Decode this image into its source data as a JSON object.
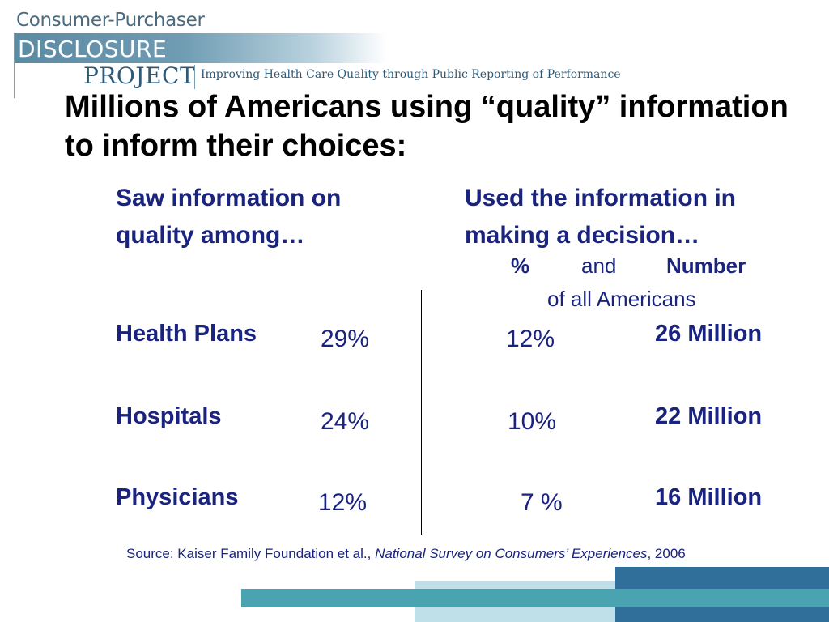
{
  "logo": {
    "line1": "Consumer-Purchaser",
    "line2": "DISCLOSURE",
    "line3": "PROJECT",
    "tagline": "Improving Health Care Quality through Public Reporting of Performance"
  },
  "title": "Millions of Americans using “quality” information to inform their choices:",
  "left_heading": "Saw information on quality among…",
  "right_heading": "Used the information in making a decision…",
  "subheaders": {
    "percent": "%",
    "and": "and",
    "number": "Number",
    "of_all": "of all Americans"
  },
  "rows": [
    {
      "label": "Health Plans",
      "saw": "29%",
      "used_pct": "12%",
      "used_num": "26 Million"
    },
    {
      "label": "Hospitals",
      "saw": "24%",
      "used_pct": "10%",
      "used_num": "22 Million"
    },
    {
      "label": "Physicians",
      "saw": "12%",
      "used_pct": "7 %",
      "used_num": "16 Million"
    }
  ],
  "source": {
    "prefix": "Source:  Kaiser Family Foundation et al., ",
    "title": "National Survey on Consumers’ Experiences",
    "suffix": ", 2006"
  },
  "colors": {
    "heading_navy": "#1a237e",
    "logo_blue": "#5b8aa3",
    "bar_teal": "#4aa3b0",
    "bar_dark": "#2f6f9a",
    "bar_light": "#bfe0e8"
  }
}
